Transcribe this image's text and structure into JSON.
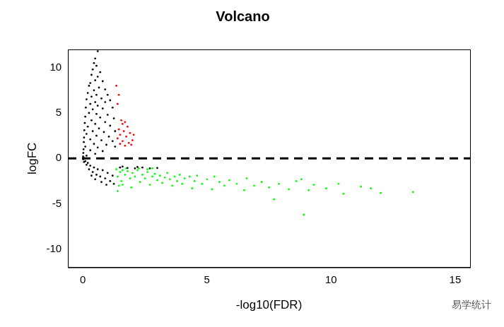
{
  "chart_data": {
    "type": "scatter",
    "title": "Volcano",
    "x_label": "-log10(FDR)",
    "y_label": "logFC",
    "annotation": "易学统计",
    "xlim": [
      -0.6,
      15.6
    ],
    "xticks": [
      0,
      5,
      10,
      15
    ],
    "ylim": [
      -12,
      12
    ],
    "yticks": [
      -10,
      -5,
      0,
      5,
      10
    ],
    "grid": false,
    "series": [
      {
        "color": "#000000",
        "marker": "circle",
        "x": [
          0.6,
          0.5,
          0.45,
          0.55,
          0.4,
          0.7,
          0.35,
          0.6,
          0.5,
          0.3,
          0.8,
          0.25,
          0.65,
          0.45,
          0.9,
          0.2,
          0.55,
          0.35,
          1.0,
          0.75,
          0.15,
          0.5,
          0.3,
          0.9,
          1.1,
          0.6,
          0.12,
          0.4,
          0.8,
          1.2,
          0.25,
          0.55,
          1.0,
          0.1,
          0.7,
          0.35,
          1.25,
          0.9,
          0.08,
          0.5,
          0.2,
          1.1,
          0.65,
          0.06,
          0.4,
          0.85,
          1.3,
          0.15,
          0.55,
          1.05,
          0.05,
          0.3,
          0.75,
          1.2,
          0.04,
          0.45,
          0.95,
          0.1,
          0.6,
          1.3,
          0.03,
          0.3,
          0.8,
          0.02,
          0.5,
          0.15,
          0.01,
          0.05,
          0.02,
          0.1,
          0.2,
          0.05,
          0.3,
          0.45,
          0.15,
          0.6,
          0.4,
          0.8,
          0.25,
          0.55,
          1.0,
          0.7,
          0.35,
          0.9,
          1.2,
          0.5,
          1.1,
          0.75,
          0.95,
          1.25,
          1.5,
          1.8,
          2.1,
          2.4,
          2.7,
          3.0,
          1.6,
          2.2
        ],
        "values": [
          11.8,
          11,
          10.5,
          10.2,
          9.8,
          9.5,
          9.2,
          9,
          8.6,
          8.3,
          8.5,
          8,
          7.8,
          7.5,
          7.6,
          7.2,
          7,
          6.8,
          7.0,
          6.6,
          6.5,
          6.2,
          6,
          6.2,
          6.4,
          5.8,
          5.6,
          5.4,
          5.5,
          5.6,
          5.0,
          4.9,
          4.8,
          4.6,
          4.5,
          4.2,
          4.4,
          4.0,
          3.9,
          3.8,
          3.5,
          3.6,
          3.3,
          3.1,
          3.0,
          2.9,
          3.0,
          2.7,
          2.5,
          2.4,
          2.3,
          2.1,
          2.0,
          1.9,
          1.8,
          1.6,
          1.5,
          1.3,
          1.2,
          1.3,
          1.0,
          0.9,
          0.8,
          0.6,
          0.5,
          0.3,
          0.2,
          0.05,
          -0.1,
          -0.3,
          -0.5,
          -0.4,
          -0.8,
          -1.0,
          -0.7,
          -1.2,
          -1.5,
          -1.3,
          -1.2,
          -1.8,
          -1.6,
          -2.0,
          -1.9,
          -2.2,
          -1.9,
          -2.3,
          -2.5,
          -2.6,
          -2.9,
          -2.8,
          -1.0,
          -1.05,
          -1.1,
          -1.0,
          -1.1,
          -1.05,
          -0.9,
          -0.95
        ]
      },
      {
        "color": "#ff0000",
        "marker": "circle",
        "x": [
          1.35,
          1.45,
          1.4,
          1.55,
          1.7,
          1.6,
          1.8,
          1.45,
          1.65,
          1.9,
          1.5,
          1.75,
          1.4,
          2.0,
          1.6,
          1.85,
          1.95,
          1.5,
          1.7,
          2.05
        ],
        "values": [
          8.0,
          7.0,
          6.0,
          4.2,
          4.0,
          3.8,
          3.5,
          3.2,
          3.0,
          2.8,
          2.6,
          2.4,
          2.2,
          2.0,
          1.9,
          1.7,
          1.5,
          1.6,
          1.4,
          2.6
        ]
      },
      {
        "color": "#00ff00",
        "marker": "circle",
        "x": [
          1.35,
          1.5,
          1.4,
          1.6,
          1.7,
          1.55,
          1.8,
          1.9,
          1.45,
          2.0,
          2.1,
          2.2,
          2.3,
          2.4,
          2.5,
          2.6,
          2.7,
          2.8,
          2.9,
          3.0,
          3.1,
          3.2,
          3.3,
          3.4,
          3.5,
          3.6,
          3.7,
          3.8,
          3.9,
          4.0,
          4.1,
          4.3,
          4.4,
          4.5,
          4.6,
          4.8,
          5.0,
          5.2,
          5.3,
          5.5,
          5.7,
          5.9,
          6.2,
          6.5,
          6.6,
          6.9,
          7.2,
          7.5,
          7.7,
          7.9,
          8.3,
          8.6,
          8.9,
          8.8,
          9.1,
          9.3,
          9.8,
          10.3,
          10.5,
          11.2,
          11.6,
          12.0,
          13.3,
          1.4,
          1.75,
          2.25,
          2.6,
          1.95,
          1.6,
          2.8
        ],
        "values": [
          -1.2,
          -1.5,
          -2.0,
          -1.3,
          -1.8,
          -2.5,
          -1.4,
          -2.2,
          -3.0,
          -1.6,
          -2.0,
          -1.3,
          -2.6,
          -1.8,
          -2.2,
          -1.5,
          -2.9,
          -2.0,
          -1.7,
          -2.4,
          -1.9,
          -2.7,
          -2.1,
          -1.6,
          -2.3,
          -3.0,
          -2.0,
          -2.5,
          -1.8,
          -2.8,
          -2.2,
          -2.0,
          -3.3,
          -2.5,
          -1.9,
          -2.8,
          -2.3,
          -3.4,
          -2.0,
          -2.6,
          -3.0,
          -2.4,
          -2.8,
          -3.5,
          -2.2,
          -3.0,
          -2.6,
          -3.2,
          -4.5,
          -2.8,
          -3.4,
          -2.5,
          -6.2,
          -2.3,
          -3.5,
          -2.9,
          -3.3,
          -2.8,
          -3.9,
          -3.1,
          -3.3,
          -3.8,
          -3.7,
          -3.6,
          -1.1,
          -1.1,
          -1.2,
          -3.2,
          -2.9,
          -1.1
        ]
      },
      {
        "type": "line",
        "line_style": "dashed",
        "color": "#000000",
        "x": [
          -0.6,
          15.6
        ],
        "values": [
          0,
          0
        ]
      }
    ]
  }
}
